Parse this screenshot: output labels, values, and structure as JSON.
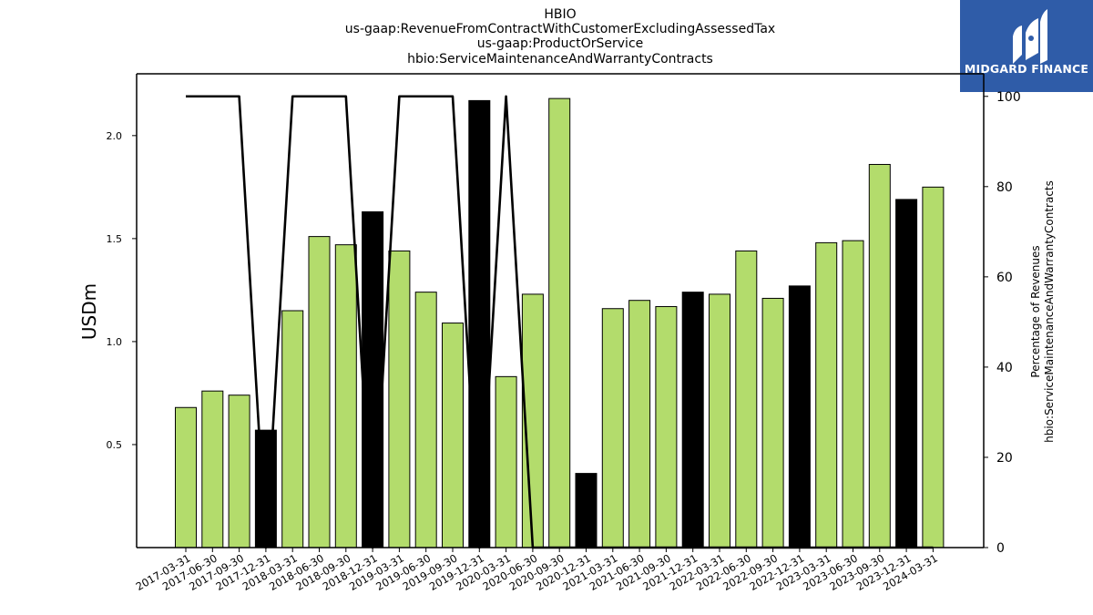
{
  "header": {
    "title_lines": [
      "HBIO",
      "us-gaap:RevenueFromContractWithCustomerExcludingAssessedTax",
      "us-gaap:ProductOrService",
      "hbio:ServiceMaintenanceAndWarrantyContracts"
    ]
  },
  "logo": {
    "text": "MIDGARD FINANCE",
    "icon": "midgard-logo-icon",
    "color": "#2f5ca8"
  },
  "chart_data": {
    "type": "bar",
    "categories": [
      "2017-03-31",
      "2017-06-30",
      "2017-09-30",
      "2017-12-31",
      "2018-03-31",
      "2018-06-30",
      "2018-09-30",
      "2018-12-31",
      "2019-03-31",
      "2019-06-30",
      "2019-09-30",
      "2019-12-31",
      "2020-03-31",
      "2020-06-30",
      "2020-09-30",
      "2020-12-31",
      "2021-03-31",
      "2021-06-30",
      "2021-09-30",
      "2021-12-31",
      "2022-03-31",
      "2022-06-30",
      "2022-09-30",
      "2022-12-31",
      "2023-03-31",
      "2023-06-30",
      "2023-09-30",
      "2023-12-31",
      "2024-03-31"
    ],
    "series": [
      {
        "axis": "left",
        "values": [
          0.68,
          0.76,
          0.74,
          0.57,
          1.15,
          1.51,
          1.47,
          1.63,
          1.44,
          1.24,
          1.09,
          2.17,
          0.83,
          1.23,
          2.18,
          0.36,
          1.16,
          1.2,
          1.17,
          1.24,
          1.23,
          1.44,
          1.21,
          1.27,
          1.48,
          1.49,
          1.86,
          1.69,
          1.75
        ],
        "bar_colors": [
          "#b3dc6c",
          "#b3dc6c",
          "#b3dc6c",
          "#000000",
          "#b3dc6c",
          "#b3dc6c",
          "#b3dc6c",
          "#000000",
          "#b3dc6c",
          "#b3dc6c",
          "#b3dc6c",
          "#000000",
          "#b3dc6c",
          "#b3dc6c",
          "#b3dc6c",
          "#000000",
          "#b3dc6c",
          "#b3dc6c",
          "#b3dc6c",
          "#000000",
          "#b3dc6c",
          "#b3dc6c",
          "#b3dc6c",
          "#000000",
          "#b3dc6c",
          "#b3dc6c",
          "#b3dc6c",
          "#000000",
          "#b3dc6c"
        ]
      },
      {
        "axis": "right",
        "type": "line",
        "color": "#000000",
        "values": [
          100,
          100,
          100,
          0,
          100,
          100,
          100,
          0,
          100,
          100,
          100,
          0,
          100,
          0,
          0,
          0,
          0,
          0,
          0,
          0,
          0,
          0,
          0,
          0,
          0,
          0,
          0,
          0,
          0
        ]
      }
    ],
    "ylabel": "USDm",
    "ylabel_right": [
      "Percentage of Revenues",
      "hbio:ServiceMaintenanceAndWarrantyContracts"
    ],
    "ylim": [
      0,
      2.3
    ],
    "yticks": [
      "0.5",
      "1.0",
      "1.5",
      "2.0"
    ],
    "ytick_values": [
      0.5,
      1.0,
      1.5,
      2.0
    ],
    "ylim_right": [
      0,
      105
    ],
    "yticks_right": [
      "0",
      "20",
      "40",
      "60",
      "80",
      "100"
    ],
    "ytick_values_right": [
      0,
      20,
      40,
      60,
      80,
      100
    ],
    "grid": false,
    "legend": "none"
  }
}
